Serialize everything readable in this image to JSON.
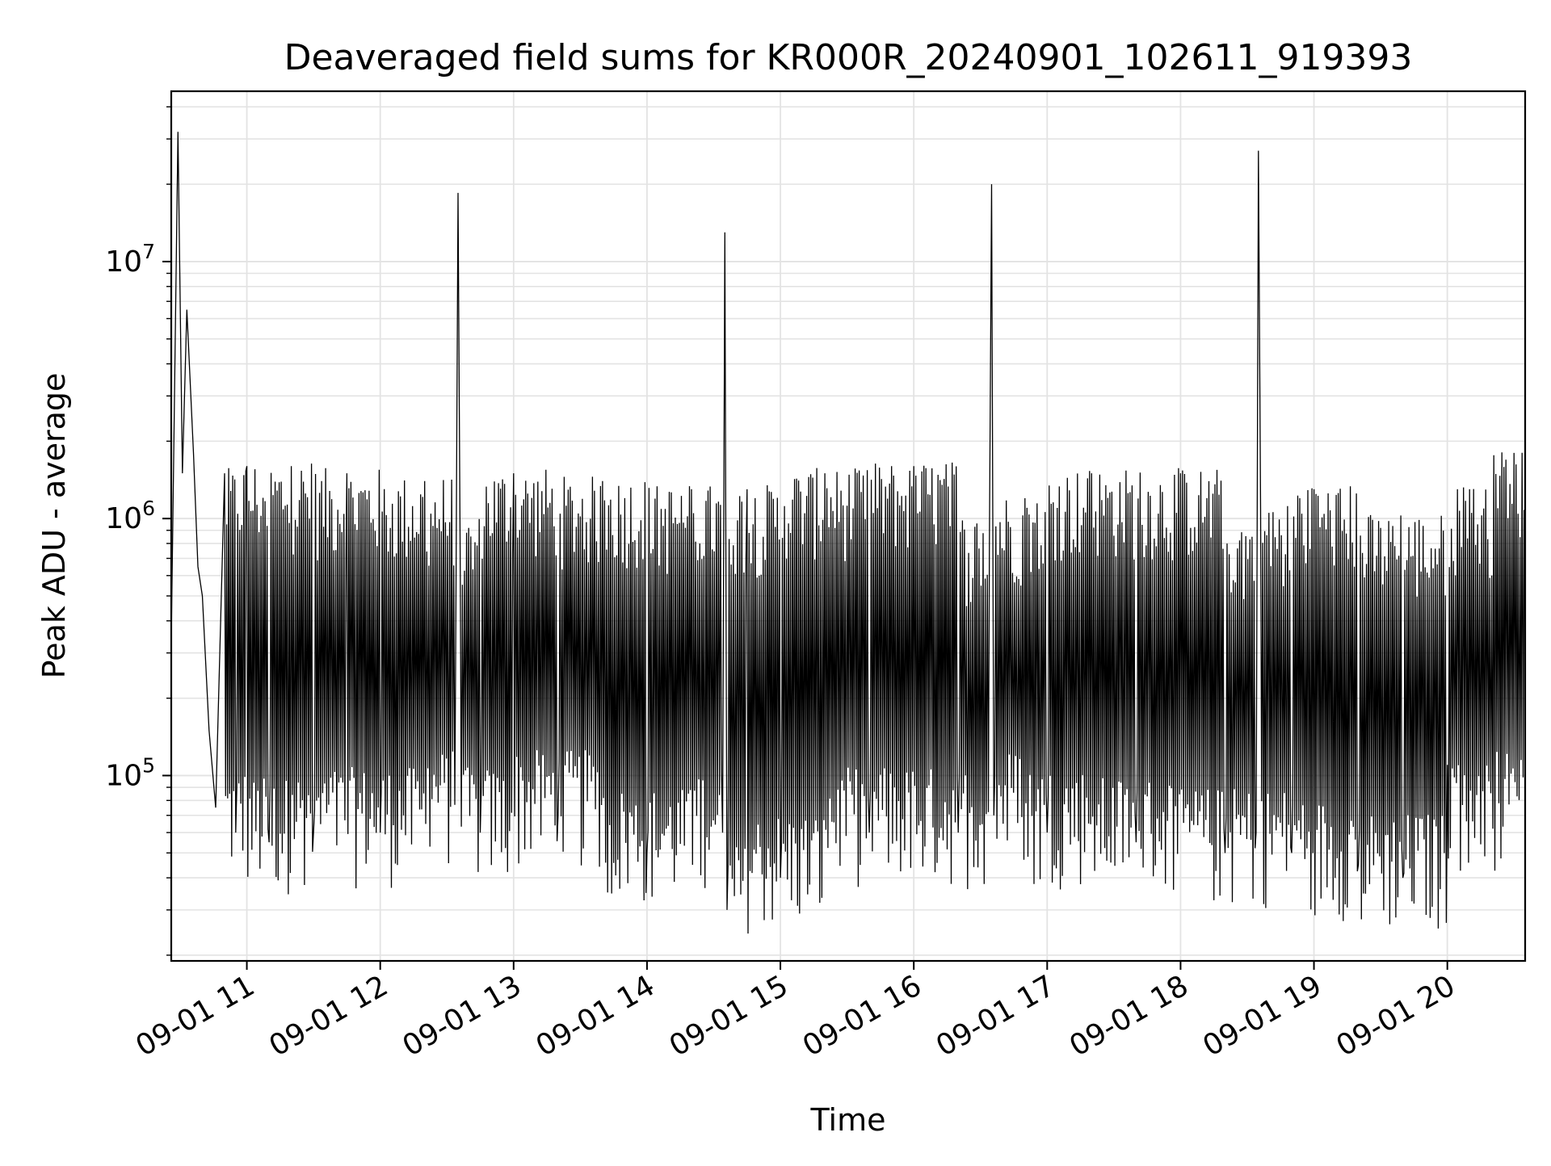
{
  "chart_data": {
    "type": "line",
    "title": "Deaveraged field sums for KR000R_20240901_102611_919393",
    "xlabel": "Time",
    "ylabel": "Peak ADU - average",
    "x_scale": "time",
    "y_scale": "log",
    "xlim": [
      "2024-09-01 10:26",
      "2024-09-01 20:35"
    ],
    "ylim": [
      19000,
      46000000
    ],
    "grid": {
      "major": true,
      "minor_y": true
    },
    "line_color": "#000000",
    "x_ticks": [
      "09-01 11",
      "09-01 12",
      "09-01 13",
      "09-01 14",
      "09-01 15",
      "09-01 16",
      "09-01 17",
      "09-01 18",
      "09-01 19",
      "09-01 20"
    ],
    "y_ticks": [
      {
        "base": "10",
        "exp": "5",
        "value": 100000
      },
      {
        "base": "10",
        "exp": "6",
        "value": 1000000
      },
      {
        "base": "10",
        "exp": "7",
        "value": 10000000
      }
    ],
    "series": [
      {
        "name": "",
        "x": [
          "2024-09-01 10:26",
          "2024-09-01 10:29",
          "2024-09-01 10:31",
          "2024-09-01 10:33",
          "2024-09-01 10:36",
          "2024-09-01 10:38",
          "2024-09-01 10:40",
          "2024-09-01 10:43",
          "2024-09-01 10:46",
          "2024-09-01 10:50",
          "2024-09-01 10:55",
          "2024-09-01 11:00",
          "2024-09-01 11:10",
          "2024-09-01 11:20",
          "2024-09-01 11:30",
          "2024-09-01 11:45",
          "2024-09-01 12:00",
          "2024-09-01 12:20",
          "2024-09-01 12:34",
          "2024-09-01 12:35",
          "2024-09-01 12:36",
          "2024-09-01 12:45",
          "2024-09-01 13:00",
          "2024-09-01 13:20",
          "2024-09-01 13:40",
          "2024-09-01 14:00",
          "2024-09-01 14:20",
          "2024-09-01 14:34",
          "2024-09-01 14:35",
          "2024-09-01 14:36",
          "2024-09-01 14:45",
          "2024-09-01 15:00",
          "2024-09-01 15:20",
          "2024-09-01 15:40",
          "2024-09-01 16:00",
          "2024-09-01 16:20",
          "2024-09-01 16:34",
          "2024-09-01 16:35",
          "2024-09-01 16:36",
          "2024-09-01 16:50",
          "2024-09-01 17:00",
          "2024-09-01 17:20",
          "2024-09-01 17:40",
          "2024-09-01 18:00",
          "2024-09-01 18:20",
          "2024-09-01 18:34",
          "2024-09-01 18:35",
          "2024-09-01 18:36",
          "2024-09-01 18:50",
          "2024-09-01 19:00",
          "2024-09-01 19:20",
          "2024-09-01 19:40",
          "2024-09-01 20:00",
          "2024-09-01 20:10",
          "2024-09-01 20:20",
          "2024-09-01 20:30",
          "2024-09-01 20:35"
        ],
        "y": [
          330000,
          32000000,
          1500000,
          6500000,
          1800000,
          650000,
          500000,
          150000,
          75000,
          1500000,
          60000,
          1600000,
          55000,
          1600000,
          60000,
          1500000,
          60000,
          1400000,
          400000,
          18500000,
          600000,
          60000,
          1500000,
          70000,
          1400000,
          50000,
          1300000,
          60000,
          13000000,
          30000,
          1300000,
          40000,
          1500000,
          60000,
          1600000,
          60000,
          800000,
          20000000,
          70000,
          1200000,
          60000,
          1500000,
          55000,
          1500000,
          50000,
          60000,
          27000000,
          1100000,
          50000,
          1300000,
          45000,
          40000,
          110000,
          1300000,
          600000,
          1800000,
          700000
        ]
      }
    ]
  }
}
